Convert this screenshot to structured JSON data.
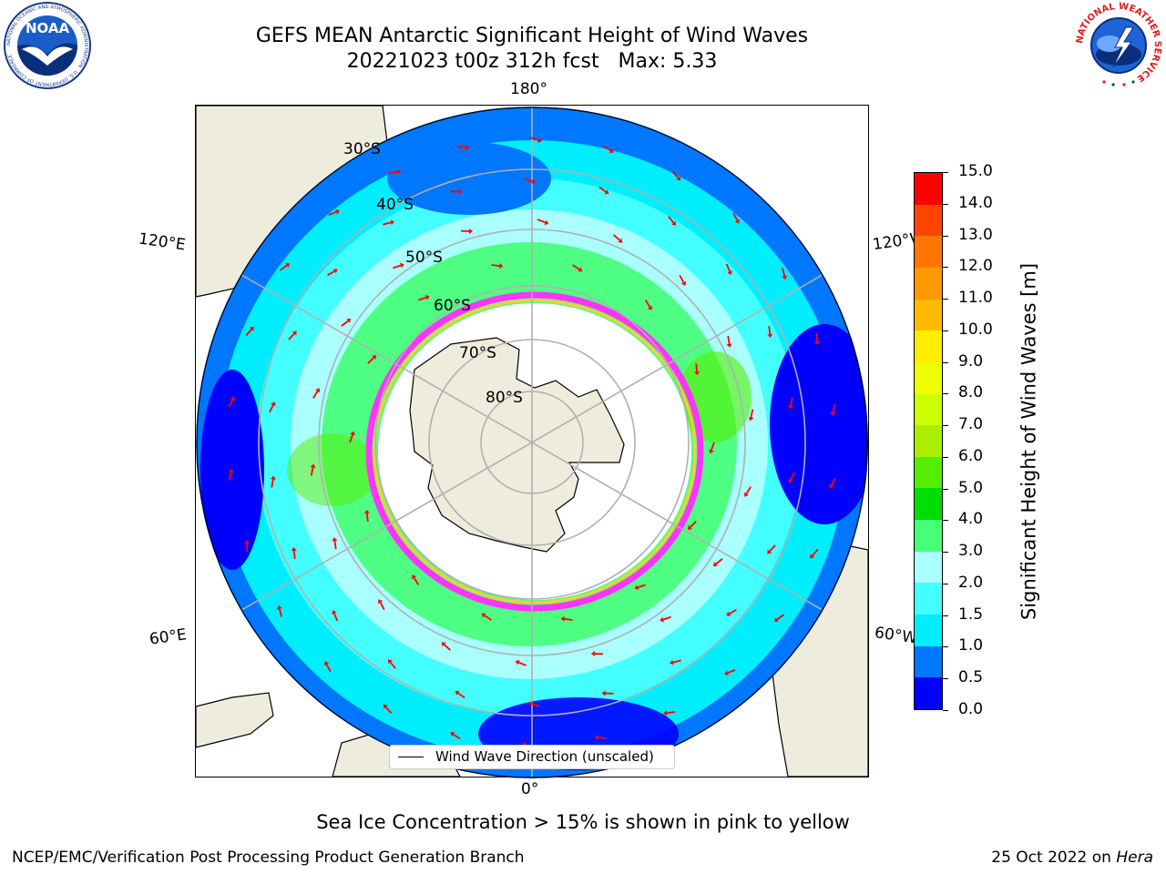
{
  "title": {
    "line1": "GEFS MEAN Antarctic Significant Height of Wind Waves",
    "line2": "20221023 t00z 312h fcst   Max: 5.33"
  },
  "logos": {
    "noaa": {
      "text": "NOAA",
      "ring_text": "NATIONAL OCEANIC AND ATMOSPHERIC ADMINISTRATION · U.S. DEPARTMENT OF COMMERCE"
    },
    "nws": {
      "ring_text": "NATIONAL WEATHER SERVICE"
    }
  },
  "map": {
    "projection": "south-polar-stereographic",
    "longitude_labels": {
      "top": "180°",
      "bottom": "0°",
      "upper_left": "120°E",
      "upper_right": "120°W",
      "lower_left": "60°E",
      "lower_right": "60°W"
    },
    "latitude_labels": [
      "30°S",
      "40°S",
      "50°S",
      "60°S",
      "70°S",
      "80°S"
    ],
    "colors": {
      "land": "#eeecdc",
      "ice": "#ffffff",
      "ice_edge": [
        "#ff33ff",
        "#ff66cc",
        "#ffcc33"
      ],
      "grid": "#b0b0b0",
      "arrow": "#ff0000"
    }
  },
  "legend": {
    "label": "Wind Wave Direction (unscaled)"
  },
  "colorbar": {
    "label": "Significant Height of Wind Waves [m]",
    "ticks": [
      "0.0",
      "0.5",
      "1.0",
      "1.5",
      "2.0",
      "3.0",
      "4.0",
      "5.0",
      "6.0",
      "7.0",
      "8.0",
      "9.0",
      "10.0",
      "11.0",
      "12.0",
      "13.0",
      "14.0",
      "15.0"
    ],
    "colors": [
      "#0000ff",
      "#0077ff",
      "#00eeff",
      "#44ffff",
      "#aaffff",
      "#44ff77",
      "#00dd00",
      "#55ee00",
      "#aaee00",
      "#ccff00",
      "#eeff00",
      "#ffee00",
      "#ffbb00",
      "#ff9900",
      "#ff7700",
      "#ff4400",
      "#ff0000"
    ]
  },
  "footer": {
    "note": "Sea Ice Concentration > 15% is shown in pink to yellow",
    "left": "NCEP/EMC/Verification Post Processing Product Generation Branch",
    "date": "25 Oct 2022 on",
    "machine": "Hera"
  }
}
